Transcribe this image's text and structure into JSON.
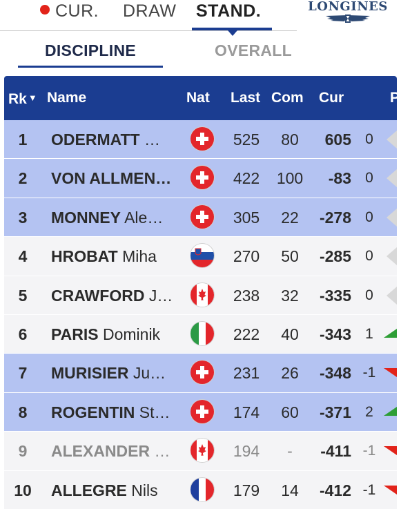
{
  "nav": {
    "tabs": [
      {
        "label": "CUR.",
        "live": true
      },
      {
        "label": "DRAW"
      },
      {
        "label": "STAND.",
        "active": true
      }
    ],
    "brand": "LONGINES"
  },
  "subnav": {
    "tabs": [
      {
        "label": "DISCIPLINE",
        "active": true
      },
      {
        "label": "OVERALL"
      }
    ]
  },
  "colors": {
    "header_bg": "#1b3d91",
    "highlight_row": "#b4c3f2",
    "plain_row": "#f4f4f6",
    "live_dot": "#e2231a",
    "up_arrow": "#2e9e36",
    "down_arrow": "#e2231a",
    "neutral_arrow": "#d8d8d8"
  },
  "table": {
    "columns": {
      "rk": "Rk",
      "sort_indicator": "▼",
      "name": "Name",
      "nat": "Nat",
      "last": "Last",
      "com": "Com",
      "cur": "Cur",
      "pos": "P"
    },
    "rows": [
      {
        "rk": "1",
        "last_name": "ODERMATT",
        "first_name": "…",
        "nat": "SUI",
        "last": "525",
        "com": "80",
        "cur": "605",
        "pos": "0",
        "trend": "same",
        "style": "hl"
      },
      {
        "rk": "2",
        "last_name": "VON ALLMEN…",
        "first_name": "",
        "nat": "SUI",
        "last": "422",
        "com": "100",
        "cur": "-83",
        "pos": "0",
        "trend": "same",
        "style": "hl"
      },
      {
        "rk": "3",
        "last_name": "MONNEY",
        "first_name": "Ale…",
        "nat": "SUI",
        "last": "305",
        "com": "22",
        "cur": "-278",
        "pos": "0",
        "trend": "same",
        "style": "hl"
      },
      {
        "rk": "4",
        "last_name": "HROBAT",
        "first_name": "Miha",
        "nat": "SLO",
        "last": "270",
        "com": "50",
        "cur": "-285",
        "pos": "0",
        "trend": "same",
        "style": "plain"
      },
      {
        "rk": "5",
        "last_name": "CRAWFORD",
        "first_name": "J…",
        "nat": "CAN",
        "last": "238",
        "com": "32",
        "cur": "-335",
        "pos": "0",
        "trend": "same",
        "style": "plain"
      },
      {
        "rk": "6",
        "last_name": "PARIS",
        "first_name": "Dominik",
        "nat": "ITA",
        "last": "222",
        "com": "40",
        "cur": "-343",
        "pos": "1",
        "trend": "up",
        "style": "plain"
      },
      {
        "rk": "7",
        "last_name": "MURISIER",
        "first_name": "Ju…",
        "nat": "SUI",
        "last": "231",
        "com": "26",
        "cur": "-348",
        "pos": "-1",
        "trend": "down",
        "style": "hl"
      },
      {
        "rk": "8",
        "last_name": "ROGENTIN",
        "first_name": "St…",
        "nat": "SUI",
        "last": "174",
        "com": "60",
        "cur": "-371",
        "pos": "2",
        "trend": "up",
        "style": "hl"
      },
      {
        "rk": "9",
        "last_name": "ALEXANDER",
        "first_name": "…",
        "nat": "CAN",
        "last": "194",
        "com": "-",
        "cur": "-411",
        "pos": "-1",
        "trend": "down",
        "style": "dim"
      },
      {
        "rk": "10",
        "last_name": "ALLEGRE",
        "first_name": "Nils",
        "nat": "FRA",
        "last": "179",
        "com": "14",
        "cur": "-412",
        "pos": "-1",
        "trend": "down",
        "style": "plain"
      }
    ]
  }
}
